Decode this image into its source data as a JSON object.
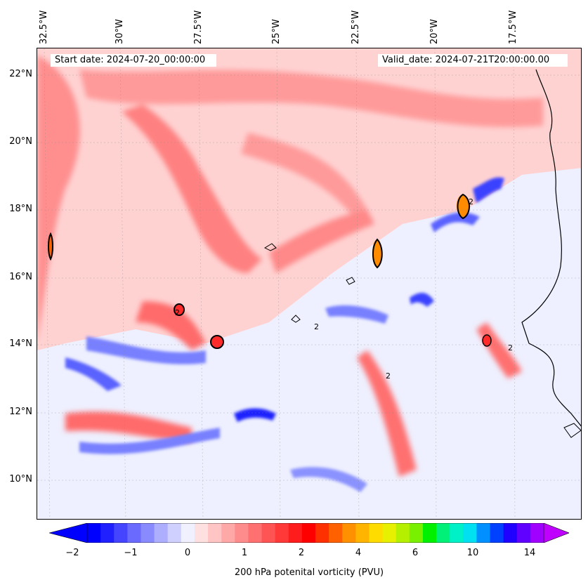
{
  "map": {
    "lon_labels": [
      "32.5°W",
      "30°W",
      "27.5°W",
      "25°W",
      "22.5°W",
      "20°W",
      "17.5°W"
    ],
    "lat_labels": [
      "22°N",
      "20°N",
      "18°N",
      "16°N",
      "14°N",
      "12°N",
      "10°N"
    ],
    "start_date": "Start date: 2024-07-20_00:00:00",
    "valid_date": "Valid_date: 2024-07-21T20:00:00.00",
    "contour_label": "2",
    "colors": {
      "background_low": "#eef0ff",
      "neg": "#5a62ff",
      "neg_deep": "#1a22ff",
      "pos_light": "#ffd2d2",
      "pos": "#ff7070",
      "pos_strong": "#ff2a2a",
      "orange": "#ff8c00"
    }
  },
  "colorbar": {
    "label": "200 hPa potenital vorticity (PVU)",
    "ticks": [
      "−2",
      "−1",
      "0",
      "1",
      "2",
      "4",
      "6",
      "10",
      "14"
    ],
    "colors": [
      "#0000ff",
      "#2020ff",
      "#4545ff",
      "#6a6aff",
      "#8a8aff",
      "#aeaeff",
      "#d0d0ff",
      "#f0f0ff",
      "#ffe0e0",
      "#ffc4c4",
      "#ffa8a8",
      "#ff8c8c",
      "#ff7070",
      "#ff5454",
      "#ff3838",
      "#ff1c1c",
      "#ff0000",
      "#ff3000",
      "#ff6000",
      "#ff9000",
      "#ffb400",
      "#ffdc00",
      "#e6f000",
      "#b4f000",
      "#78f000",
      "#00f000",
      "#00f078",
      "#00f0c8",
      "#00e0f0",
      "#0090ff",
      "#0040ff",
      "#2000ff",
      "#6000ff",
      "#a000ff"
    ]
  }
}
